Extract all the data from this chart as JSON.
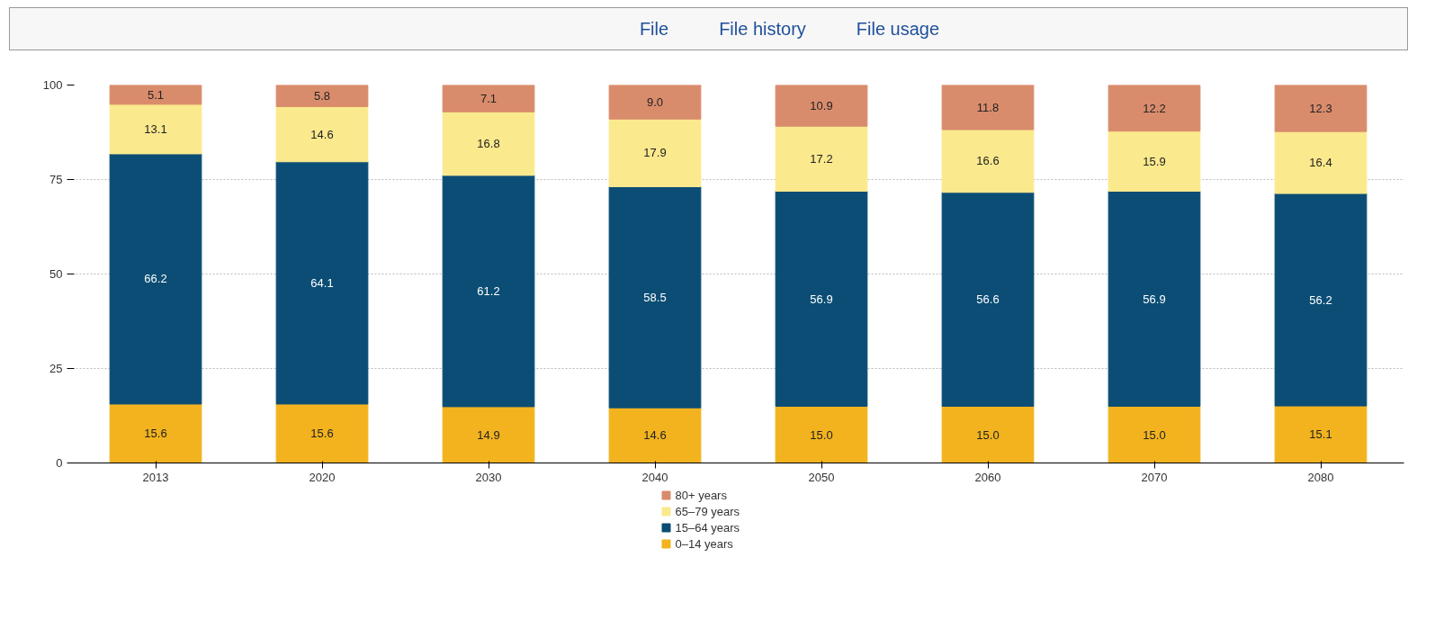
{
  "chart_data": {
    "type": "bar",
    "stacked": true,
    "legend": "bottom",
    "grid": "y",
    "annotations": [
      "File",
      "File history",
      "File usage"
    ],
    "categories": [
      "2013",
      "2020",
      "2030",
      "2040",
      "2050",
      "2060",
      "2070",
      "2080"
    ],
    "ylim": [
      0,
      100
    ],
    "yticks": [
      0,
      25,
      50,
      75,
      100
    ],
    "series": [
      {
        "name": "0–14 years",
        "color": "#f2b31f",
        "values": [
          15.6,
          15.6,
          14.9,
          14.6,
          15.0,
          15.0,
          15.0,
          15.1
        ],
        "value_labels": [
          "15.6",
          "15.6",
          "14.9",
          "14.6",
          "15.0",
          "15.0",
          "15.0",
          "15.1"
        ]
      },
      {
        "name": "15–64 years",
        "color": "#0b4d75",
        "values": [
          66.2,
          64.1,
          61.2,
          58.5,
          56.9,
          56.6,
          56.9,
          56.2
        ],
        "value_labels": [
          "66.2",
          "64.1",
          "61.2",
          "58.5",
          "56.9",
          "56.6",
          "56.9",
          "56.2"
        ]
      },
      {
        "name": "65–79 years",
        "color": "#fbe98d",
        "values": [
          13.1,
          14.6,
          16.8,
          17.9,
          17.2,
          16.6,
          15.9,
          16.4
        ],
        "value_labels": [
          "13.1",
          "14.6",
          "16.8",
          "17.9",
          "17.2",
          "16.6",
          "15.9",
          "16.4"
        ]
      },
      {
        "name": "80+ years",
        "color": "#d98c6c",
        "values": [
          5.1,
          5.8,
          7.1,
          9.0,
          10.9,
          11.8,
          12.2,
          12.3
        ],
        "value_labels": [
          "5.1",
          "5.8",
          "7.1",
          "9.0",
          "10.9",
          "11.8",
          "12.2",
          "12.3"
        ]
      }
    ]
  }
}
